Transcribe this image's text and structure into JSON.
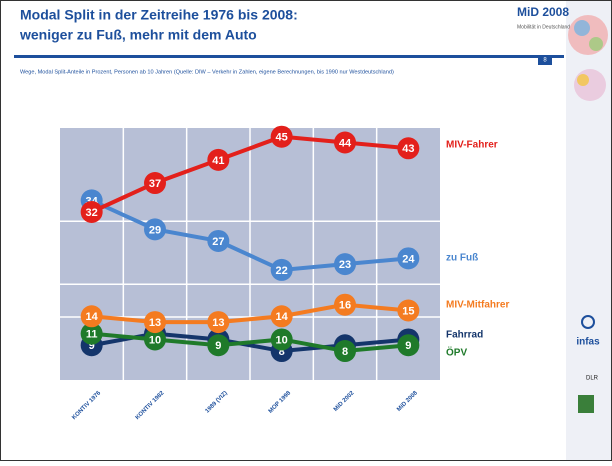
{
  "slide": {
    "logo": "MiD 2008",
    "logo_sub": "Mobilität in Deutschland",
    "page": "8",
    "side_logos": [
      "infas",
      "DLR"
    ]
  },
  "chart_data": {
    "type": "line",
    "title": "Modal Split in der Zeitreihe 1976 bis 2008:",
    "subtitle": "weniger zu Fuß, mehr mit dem Auto",
    "note": "Wege, Modal Split-Anteile in Prozent, Personen ab 10 Jahren (Quelle: DIW – Verkehr in Zahlen, eigene Berechnungen, bis 1990 nur Westdeutschland)",
    "categories": [
      "KONTIV 1976",
      "KONTIV 1982",
      "1989 (VIZ)",
      "MOP 1998",
      "MiD 2002",
      "MiD 2008"
    ],
    "ylim": [
      3,
      46.5
    ],
    "series": [
      {
        "name": "MIV-Fahrer",
        "color": "#e3201b",
        "values": [
          32,
          37,
          41,
          45,
          44,
          43
        ]
      },
      {
        "name": "zu Fuß",
        "color": "#4a86cf",
        "values": [
          34,
          29,
          27,
          22,
          23,
          24
        ]
      },
      {
        "name": "MIV-Mitfahrer",
        "color": "#f47b20",
        "values": [
          14,
          13,
          13,
          14,
          16,
          15
        ]
      },
      {
        "name": "Fahrrad",
        "color": "#14356b",
        "values": [
          9,
          11,
          10,
          8,
          9,
          10
        ]
      },
      {
        "name": "ÖPV",
        "color": "#1f7a2a",
        "values": [
          11,
          10,
          9,
          10,
          8,
          9
        ]
      }
    ]
  }
}
